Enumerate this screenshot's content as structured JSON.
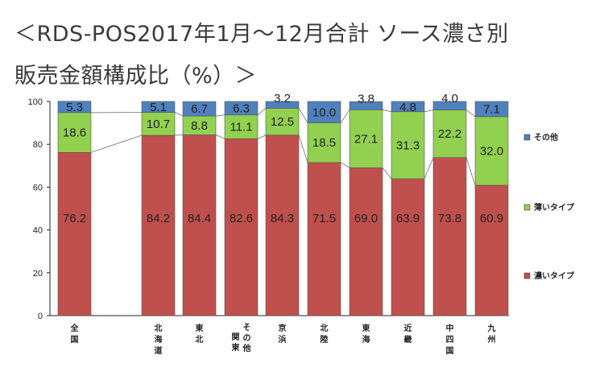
{
  "page": {
    "title_line1": "＜RDS-POS2017年1月〜12月合計 ソース濃さ別",
    "title_line2": "販売金額構成比（%）＞"
  },
  "chart_data": {
    "type": "bar",
    "stacked": true,
    "percent": true,
    "ylim": [
      0,
      100
    ],
    "yticks": [
      0,
      20,
      40,
      60,
      80,
      100
    ],
    "categories": [
      "全国",
      "北海道",
      "東北",
      "関東その他",
      "京浜",
      "北陸",
      "東海",
      "近畿",
      "中四国",
      "九州"
    ],
    "category_label_lines": [
      [
        "全",
        "国"
      ],
      [
        "北",
        "海",
        "道"
      ],
      [
        "東",
        "北"
      ],
      [
        "関東",
        "その他"
      ],
      [
        "京",
        "浜"
      ],
      [
        "北",
        "陸"
      ],
      [
        "東",
        "海"
      ],
      [
        "近",
        "畿"
      ],
      [
        "中",
        "四",
        "国"
      ],
      [
        "九",
        "州"
      ]
    ],
    "series": [
      {
        "name": "濃いタイプ",
        "color": "#c0504d",
        "values": [
          76.2,
          84.2,
          84.4,
          82.6,
          84.3,
          71.5,
          69.0,
          63.9,
          73.8,
          60.9
        ]
      },
      {
        "name": "薄いタイプ",
        "color": "#92d050",
        "values": [
          18.6,
          10.7,
          8.8,
          11.1,
          12.5,
          18.5,
          27.1,
          31.3,
          22.2,
          32.0
        ]
      },
      {
        "name": "その他",
        "color": "#4f81bd",
        "values": [
          5.3,
          5.1,
          6.7,
          6.3,
          3.2,
          10.0,
          3.8,
          4.8,
          4.0,
          7.1
        ]
      }
    ],
    "value_labels": [
      [
        "76.2",
        "84.2",
        "84.4",
        "82.6",
        "84.3",
        "71.5",
        "69.0",
        "63.9",
        "73.8",
        "60.9"
      ],
      [
        "18.6",
        "10.7",
        "8.8",
        "11.1",
        "12.5",
        "18.5",
        "27.1",
        "31.3",
        "22.2",
        "32.0"
      ],
      [
        "5.3",
        "5.1",
        "6.7",
        "6.3",
        "3.2",
        "10.0",
        "3.8",
        "4.8",
        "4.0",
        "7.1"
      ]
    ],
    "legend": [
      "その他",
      "薄いタイプ",
      "濃いタイプ"
    ],
    "legend_position": "right",
    "series_lines": true
  }
}
